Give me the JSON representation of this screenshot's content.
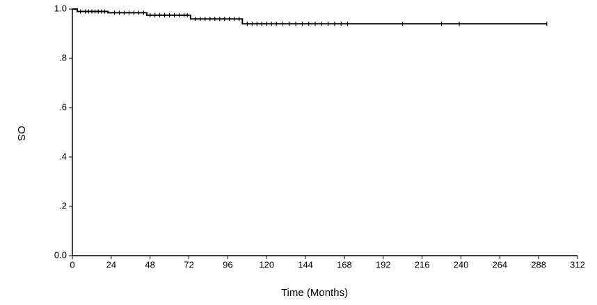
{
  "chart_data": {
    "type": "km",
    "x_label": "Time (Months)",
    "y_label": "OS",
    "series": [
      {
        "name": "OS",
        "color": "#000000",
        "x": [
          0,
          3,
          22,
          46,
          73,
          105
        ],
        "values": [
          1.0,
          0.99,
          0.985,
          0.975,
          0.96,
          0.94
        ],
        "censored": [
          5,
          8,
          10,
          12,
          14,
          16,
          18,
          20,
          26,
          29,
          32,
          35,
          38,
          41,
          44,
          48,
          51,
          54,
          57,
          60,
          63,
          66,
          69,
          71,
          76,
          79,
          82,
          85,
          88,
          91,
          94,
          97,
          100,
          103,
          108,
          111,
          114,
          117,
          120,
          123,
          126,
          130,
          134,
          138,
          142,
          146,
          150,
          154,
          158,
          162,
          166,
          170,
          204,
          228,
          239,
          293
        ]
      }
    ],
    "xlim": [
      0,
      312
    ],
    "xticks": [
      0,
      24,
      48,
      72,
      96,
      120,
      144,
      168,
      192,
      216,
      240,
      264,
      288,
      312
    ],
    "ylim": [
      0,
      1
    ],
    "yticks": [
      {
        "value": 0,
        "label": "0.0"
      },
      {
        "value": 0.2,
        "label": ".2"
      },
      {
        "value": 0.4,
        "label": ".4"
      },
      {
        "value": 0.6,
        "label": ".6"
      },
      {
        "value": 0.8,
        "label": ".8"
      },
      {
        "value": 1,
        "label": "1.0"
      }
    ]
  }
}
